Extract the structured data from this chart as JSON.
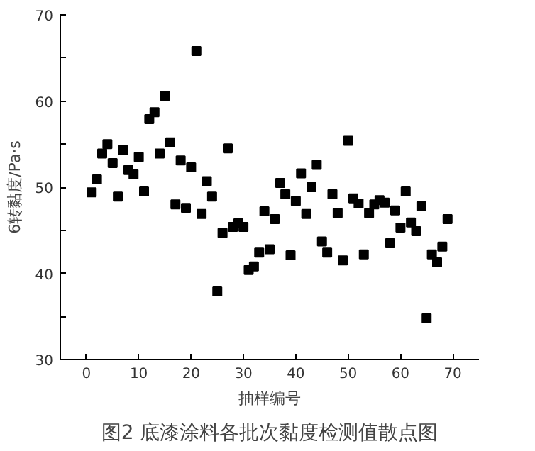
{
  "chart_data": {
    "type": "scatter",
    "title": "图2 底漆涂料各批次黏度检测值散点图",
    "xlabel": "抽样编号",
    "ylabel": "6转黏度/Pa·s",
    "x": [
      1,
      2,
      3,
      4,
      5,
      6,
      7,
      8,
      9,
      10,
      11,
      12,
      13,
      14,
      15,
      16,
      17,
      18,
      19,
      20,
      21,
      22,
      23,
      24,
      25,
      26,
      27,
      28,
      29,
      30,
      31,
      32,
      33,
      34,
      35,
      36,
      37,
      38,
      39,
      40,
      41,
      42,
      43,
      44,
      45,
      46,
      47,
      48,
      49,
      50,
      51,
      52,
      53,
      54,
      55,
      56,
      57,
      58,
      59,
      60,
      61,
      62,
      63,
      64,
      65,
      66,
      67,
      68,
      69
    ],
    "series": [
      {
        "color": "#000000",
        "values": [
          49.4,
          50.9,
          53.9,
          55.0,
          52.8,
          48.9,
          54.3,
          52.0,
          51.5,
          53.5,
          49.5,
          57.9,
          58.7,
          53.9,
          60.6,
          55.2,
          48.0,
          53.1,
          47.6,
          52.3,
          65.8,
          46.9,
          50.7,
          48.9,
          37.9,
          44.7,
          54.5,
          45.4,
          45.8,
          45.4,
          40.4,
          40.8,
          42.4,
          47.2,
          42.8,
          46.3,
          50.5,
          49.2,
          42.1,
          48.4,
          51.6,
          46.9,
          50.0,
          52.6,
          43.7,
          42.4,
          49.2,
          47.0,
          41.5,
          55.4,
          48.7,
          48.1,
          42.2,
          47.0,
          48.0,
          48.5,
          48.2,
          43.5,
          47.3,
          45.3,
          49.5,
          45.9,
          44.9,
          47.8,
          34.8,
          42.2,
          41.3,
          43.1,
          46.3
        ]
      }
    ],
    "marker": "square",
    "xlim": [
      -5,
      75
    ],
    "xticks": [
      0,
      10,
      20,
      30,
      40,
      50,
      60,
      70
    ],
    "ylim": [
      30,
      70
    ],
    "yticks": [
      30,
      {
        "value": 35,
        "label": null
      },
      40,
      {
        "value": 45,
        "label": null
      },
      50,
      {
        "value": 55,
        "label": null
      },
      60,
      {
        "value": 65,
        "label": null
      },
      70
    ],
    "grid": false
  }
}
